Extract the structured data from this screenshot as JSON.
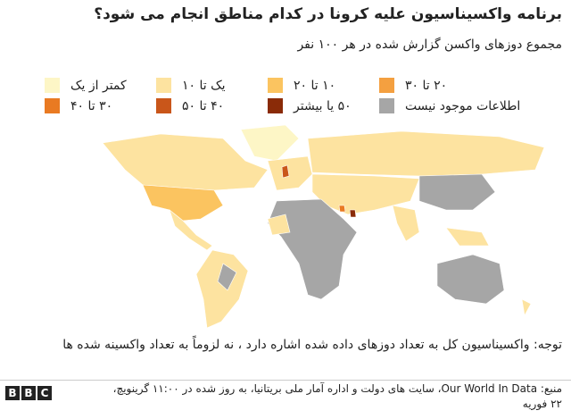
{
  "header": {
    "title": "برنامه واکسیناسیون علیه کرونا در کدام مناطق انجام می شود؟",
    "subtitle": "مجموع دوزهای واکسن گزارش شده در هر ۱۰۰ نفر"
  },
  "legend": [
    {
      "label": "کمتر از یک",
      "color": "#fdf6c6"
    },
    {
      "label": "یک تا ۱۰",
      "color": "#fde3a0"
    },
    {
      "label": "۱۰ تا ۲۰",
      "color": "#fbc460"
    },
    {
      "label": "۲۰ تا ۳۰",
      "color": "#f4a040"
    },
    {
      "label": "۳۰ تا ۴۰",
      "color": "#e97a22"
    },
    {
      "label": "۴۰ تا ۵۰",
      "color": "#c9561a"
    },
    {
      "label": "۵۰ یا بیشتر",
      "color": "#8a2b08"
    },
    {
      "label": "اطلاعات موجود نیست",
      "color": "#a6a6a6"
    }
  ],
  "note": "توجه: واکسیناسیون کل به تعداد دوزهای داده شده اشاره دارد ، نه لزوماً به تعداد واکسینه شده ها",
  "source": "منبع: Our World In Data، سایت های دولت و اداره آمار ملی بریتانیا، به روز شده در ۱۱:۰۰ گرینویچ، ۲۲ فوریه",
  "logo": "BBC"
}
